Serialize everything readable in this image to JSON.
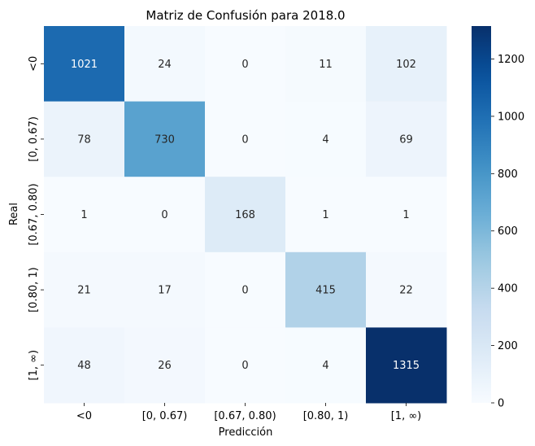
{
  "chart_data": {
    "type": "heatmap",
    "title": "Matriz de Confusión para 2018.0",
    "xlabel": "Predicción",
    "ylabel": "Real",
    "x_categories": [
      "<0",
      "[0, 0.67)",
      "[0.67, 0.80)",
      "[0.80, 1)",
      "[1, ∞)"
    ],
    "y_categories": [
      "<0",
      "[0, 0.67)",
      "[0.67, 0.80)",
      "[0.80, 1)",
      "[1, ∞)"
    ],
    "values": [
      [
        1021,
        24,
        0,
        11,
        102
      ],
      [
        78,
        730,
        0,
        4,
        69
      ],
      [
        1,
        0,
        168,
        1,
        1
      ],
      [
        21,
        17,
        0,
        415,
        22
      ],
      [
        48,
        26,
        0,
        4,
        1315
      ]
    ],
    "colormap": "Blues",
    "vmin": 0,
    "vmax": 1315,
    "colorbar_ticks": [
      0,
      200,
      400,
      600,
      800,
      1000,
      1200
    ],
    "colors": {
      "low": "#f7fbff",
      "high": "#08306b",
      "light_text": "#ffffff",
      "dark_text": "#262626"
    }
  }
}
